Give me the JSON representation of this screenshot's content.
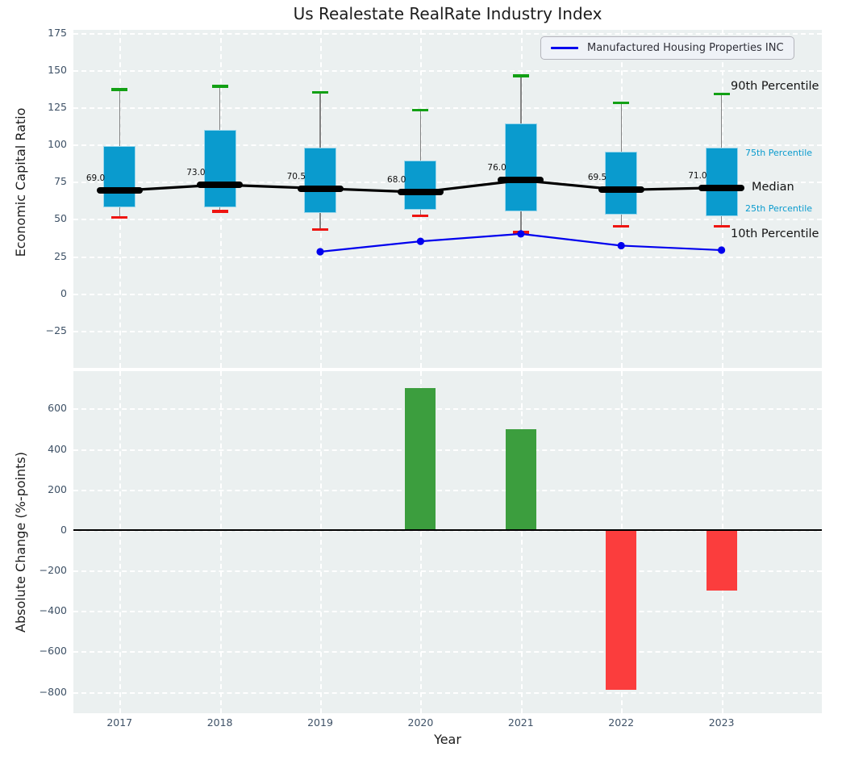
{
  "title": "Us Realestate RealRate Industry Index",
  "legend": {
    "label": "Manufactured Housing Properties INC"
  },
  "annotations": {
    "p90": "90th Percentile",
    "p75": "75th Percentile",
    "median": "Median",
    "p25": "25th Percentile",
    "p10": "10th Percentile"
  },
  "colors": {
    "box_fill": "#0a9bce",
    "box_edge": "#9bd7ec",
    "whisker": "#828282",
    "cap_top_green": "#12a014",
    "cap_bottom_red": "#ee1410",
    "median_black": "#000000",
    "company_line_blue": "#0000ee",
    "bar_positive_green": "#3c9e3e",
    "bar_negative_red": "#fb3d3d",
    "plot_background": "#ebf0f0",
    "gridline": "#ffffff",
    "tick_text": "#3e5166"
  },
  "chart_data": [
    {
      "type": "boxplot+line",
      "title": "Us Realestate RealRate Industry Index",
      "ylabel": "Economic Capital Ratio",
      "yticks": [
        175,
        150,
        125,
        100,
        75,
        50,
        25,
        0,
        -25
      ],
      "ylim": [
        -50,
        177
      ],
      "xlim": [
        2016.54,
        2024.0
      ],
      "grid": true,
      "legend_position": "upper right",
      "categories": [
        2017,
        2018,
        2019,
        2020,
        2021,
        2022,
        2023
      ],
      "boxes": [
        {
          "year": 2017,
          "p10": 51,
          "p25": 58,
          "median": 69.0,
          "p75": 99,
          "p90": 137,
          "median_label": "69.0"
        },
        {
          "year": 2018,
          "p10": 55,
          "p25": 58,
          "median": 73.0,
          "p75": 110,
          "p90": 139,
          "median_label": "73.0"
        },
        {
          "year": 2019,
          "p10": 43,
          "p25": 54,
          "median": 70.5,
          "p75": 98,
          "p90": 135,
          "median_label": "70.5"
        },
        {
          "year": 2020,
          "p10": 52,
          "p25": 56,
          "median": 68.0,
          "p75": 89,
          "p90": 123,
          "median_label": "68.0"
        },
        {
          "year": 2021,
          "p10": 41,
          "p25": 55,
          "median": 76.0,
          "p75": 114,
          "p90": 146,
          "median_label": "76.0"
        },
        {
          "year": 2022,
          "p10": 45,
          "p25": 53,
          "median": 69.5,
          "p75": 95,
          "p90": 128,
          "median_label": "69.5"
        },
        {
          "year": 2023,
          "p10": 45,
          "p25": 52,
          "median": 71.0,
          "p75": 98,
          "p90": 134,
          "median_label": "71.0"
        }
      ],
      "series": [
        {
          "name": "Manufactured Housing Properties INC",
          "x": [
            2019,
            2020,
            2021,
            2022,
            2023
          ],
          "y": [
            28,
            35,
            40,
            32.1,
            29.1
          ]
        }
      ]
    },
    {
      "type": "bar",
      "ylabel": "Absolute Change (%-points)",
      "xlabel": "Year",
      "yticks": [
        600,
        400,
        200,
        0,
        -200,
        -400,
        -600,
        -800
      ],
      "ylim": [
        -905,
        785
      ],
      "xlim": [
        2016.54,
        2024.0
      ],
      "grid": true,
      "categories": [
        2017,
        2018,
        2019,
        2020,
        2021,
        2022,
        2023
      ],
      "values": [
        null,
        null,
        null,
        700,
        500,
        -790,
        -300
      ]
    }
  ]
}
